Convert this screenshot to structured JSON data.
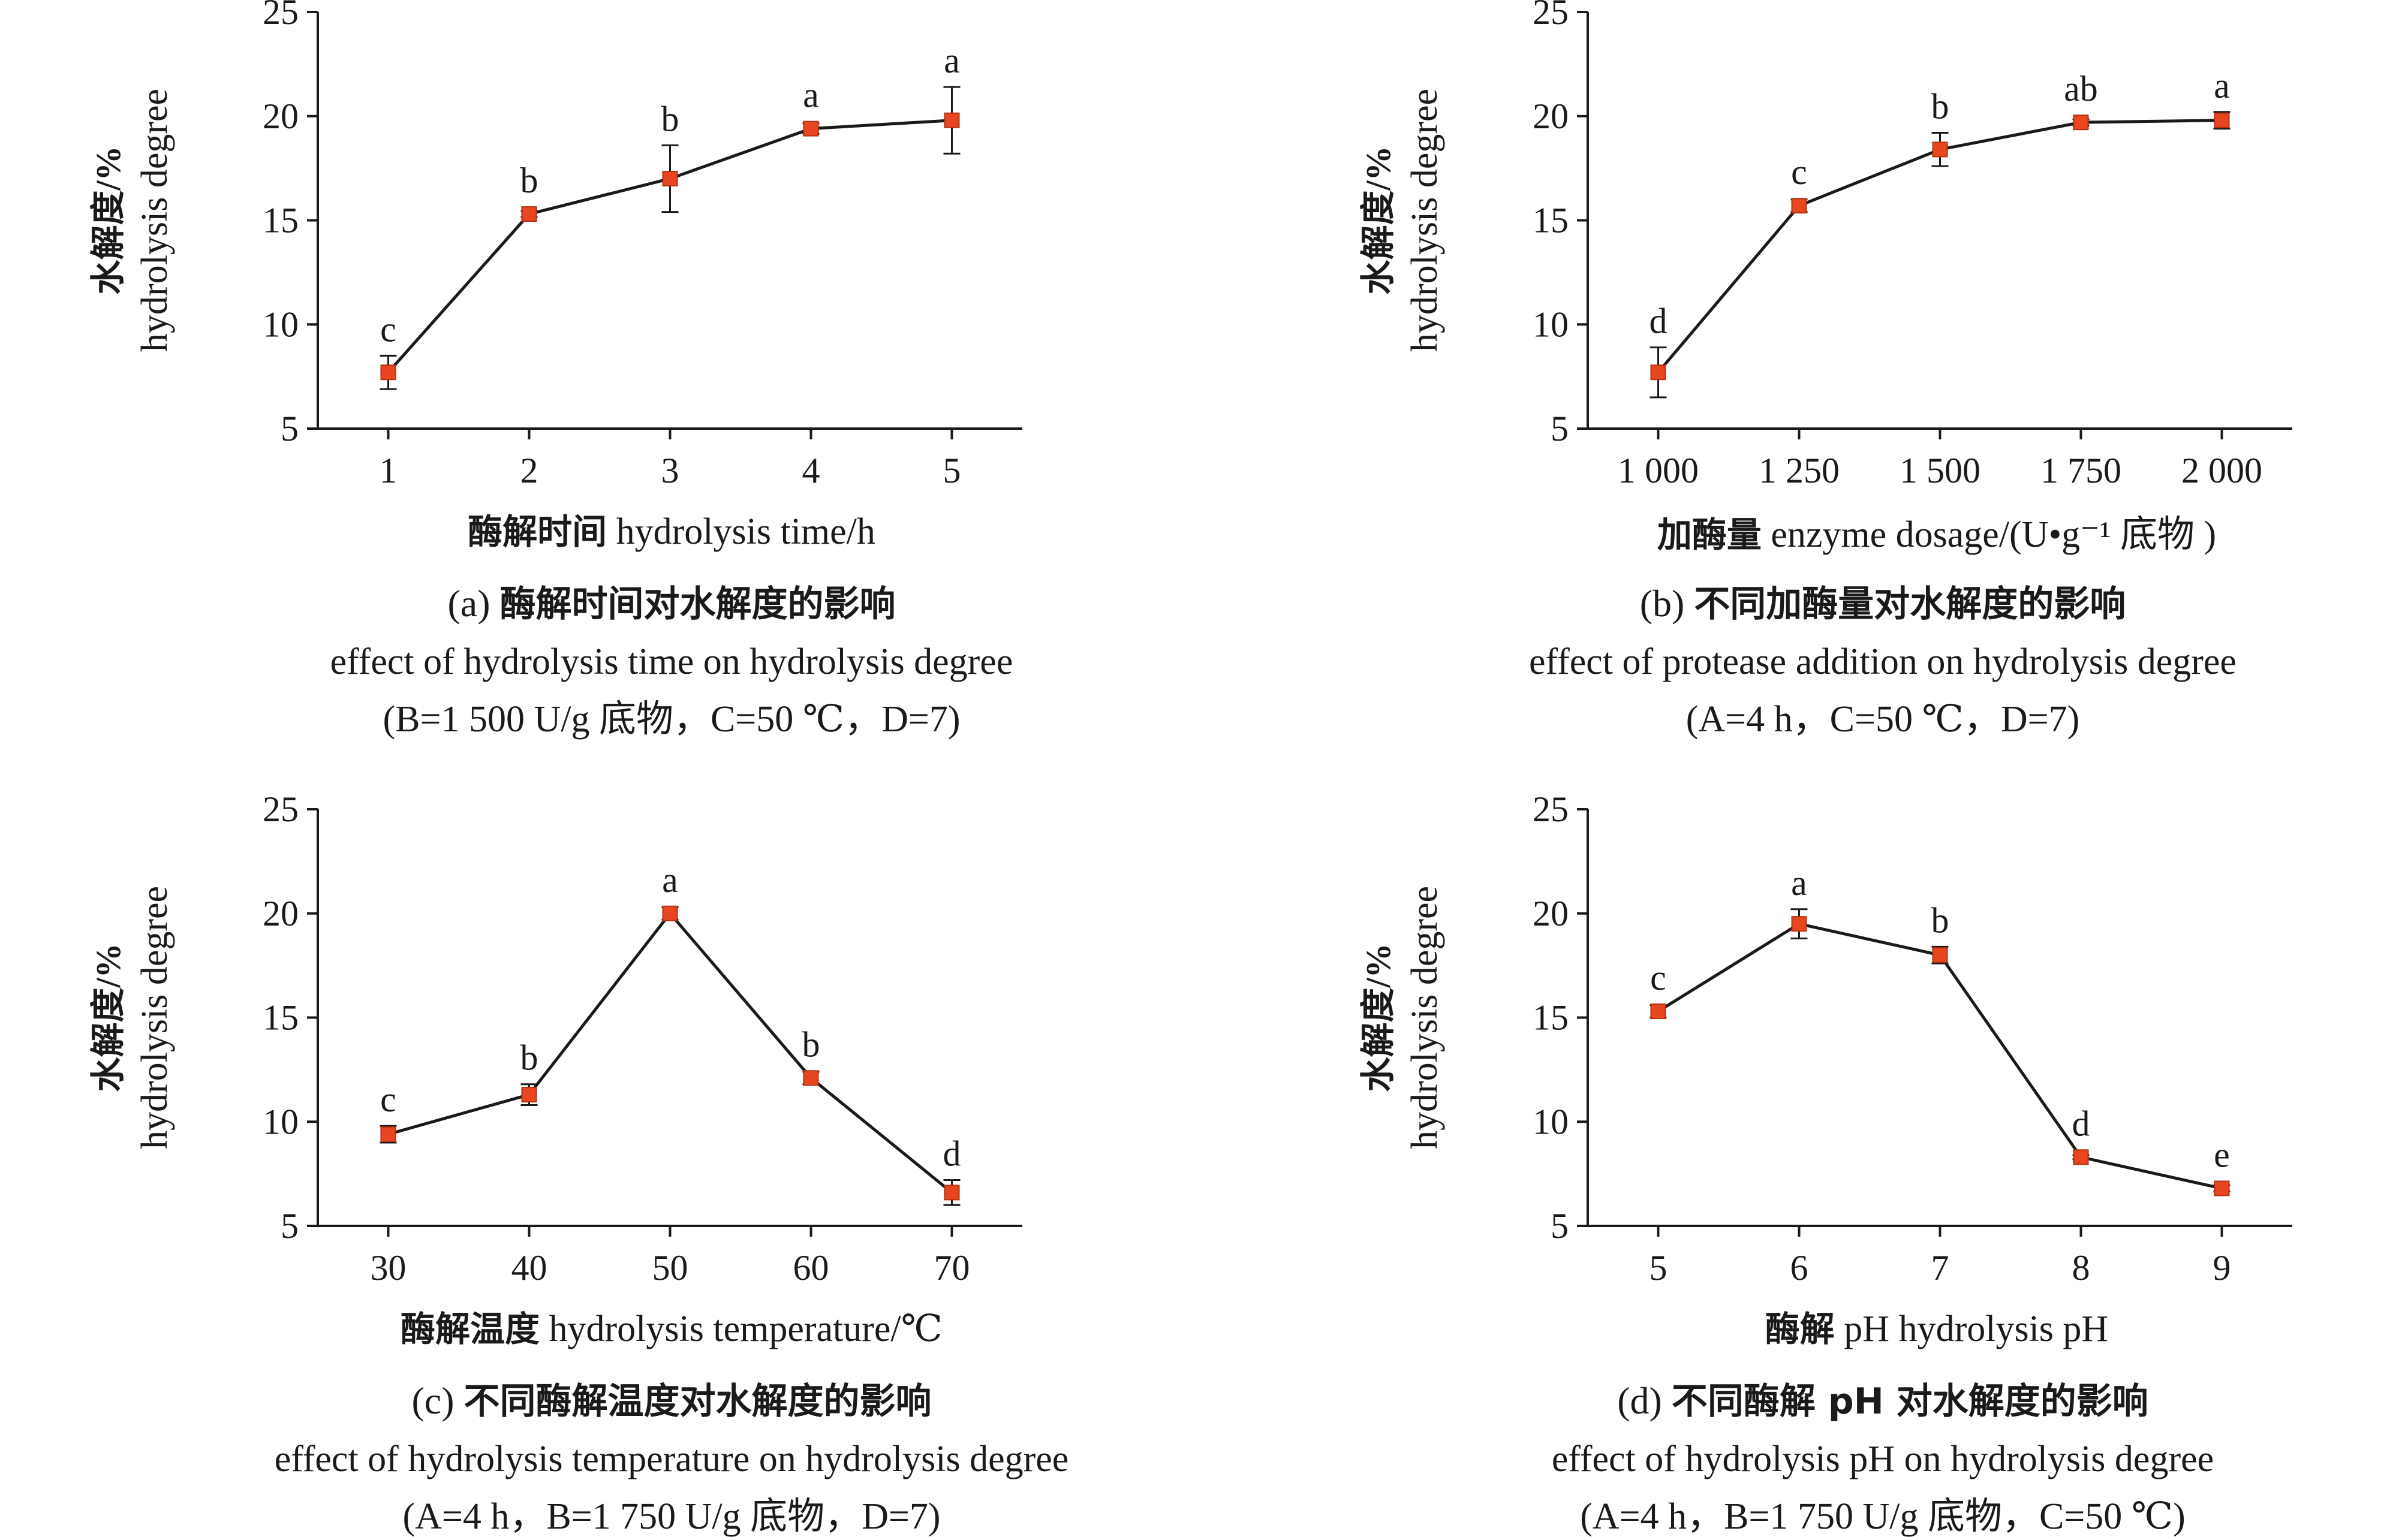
{
  "chart_data": [
    {
      "id": "a",
      "type": "line",
      "y_label_cn": "水解度/%",
      "y_label_en": "hydrolysis degree",
      "x_label_cn": "酶解时间",
      "x_label_en": "hydrolysis time/h",
      "x_ticks": [
        "1",
        "2",
        "3",
        "4",
        "5"
      ],
      "y_ticks": [
        "5",
        "10",
        "15",
        "20",
        "25"
      ],
      "ylim": [
        5,
        25
      ],
      "points": [
        {
          "x": "1",
          "y": 7.7,
          "err": 0.8,
          "letter": "c"
        },
        {
          "x": "2",
          "y": 15.3,
          "err": 0.15,
          "letter": "b"
        },
        {
          "x": "3",
          "y": 17.0,
          "err": 1.6,
          "letter": "b"
        },
        {
          "x": "4",
          "y": 19.4,
          "err": 0.25,
          "letter": "a"
        },
        {
          "x": "5",
          "y": 19.8,
          "err": 1.6,
          "letter": "a"
        }
      ],
      "caption_prefix": "(a)",
      "caption_cn": "酶解时间对水解度的影响",
      "caption_en": "effect of hydrolysis time on hydrolysis degree",
      "caption_cond": "(B=1 500 U/g 底物，C=50 ℃，D=7)"
    },
    {
      "id": "b",
      "type": "line",
      "y_label_cn": "水解度/%",
      "y_label_en": "hydrolysis degree",
      "x_label_cn": "加酶量",
      "x_label_en": "enzyme dosage/(U•g⁻¹ 底物 )",
      "x_ticks": [
        "1 000",
        "1 250",
        "1 500",
        "1 750",
        "2 000"
      ],
      "y_ticks": [
        "5",
        "10",
        "15",
        "20",
        "25"
      ],
      "ylim": [
        5,
        25
      ],
      "points": [
        {
          "x": "1 000",
          "y": 7.7,
          "err": 1.2,
          "letter": "d"
        },
        {
          "x": "1 250",
          "y": 15.7,
          "err": 0.3,
          "letter": "c"
        },
        {
          "x": "1 500",
          "y": 18.4,
          "err": 0.8,
          "letter": "b"
        },
        {
          "x": "1 750",
          "y": 19.7,
          "err": 0.15,
          "letter": "ab"
        },
        {
          "x": "2 000",
          "y": 19.8,
          "err": 0.4,
          "letter": "a"
        }
      ],
      "caption_prefix": "(b)",
      "caption_cn": "不同加酶量对水解度的影响",
      "caption_en": "effect of protease addition on hydrolysis degree",
      "caption_cond": "(A=4 h，C=50 ℃，D=7)"
    },
    {
      "id": "c",
      "type": "line",
      "y_label_cn": "水解度/%",
      "y_label_en": "hydrolysis degree",
      "x_label_cn": "酶解温度",
      "x_label_en": "hydrolysis temperature/℃",
      "x_ticks": [
        "30",
        "40",
        "50",
        "60",
        "70"
      ],
      "y_ticks": [
        "5",
        "10",
        "15",
        "20",
        "25"
      ],
      "ylim": [
        5,
        25
      ],
      "points": [
        {
          "x": "30",
          "y": 9.4,
          "err": 0.4,
          "letter": "c"
        },
        {
          "x": "40",
          "y": 11.3,
          "err": 0.5,
          "letter": "b"
        },
        {
          "x": "50",
          "y": 20.0,
          "err": 0.3,
          "letter": "a"
        },
        {
          "x": "60",
          "y": 12.1,
          "err": 0.3,
          "letter": "b"
        },
        {
          "x": "70",
          "y": 6.6,
          "err": 0.6,
          "letter": "d"
        }
      ],
      "caption_prefix": "(c)",
      "caption_cn": "不同酶解温度对水解度的影响",
      "caption_en": "effect of hydrolysis temperature on hydrolysis degree",
      "caption_cond": "(A=4 h，B=1 750 U/g 底物，D=7)"
    },
    {
      "id": "d",
      "type": "line",
      "y_label_cn": "水解度/%",
      "y_label_en": "hydrolysis degree",
      "x_label_cn": "酶解",
      "x_label_en": "pH  hydrolysis pH",
      "x_ticks": [
        "5",
        "6",
        "7",
        "8",
        "9"
      ],
      "y_ticks": [
        "5",
        "10",
        "15",
        "20",
        "25"
      ],
      "ylim": [
        5,
        25
      ],
      "points": [
        {
          "x": "5",
          "y": 15.3,
          "err": 0.3,
          "letter": "c"
        },
        {
          "x": "6",
          "y": 19.5,
          "err": 0.7,
          "letter": "a"
        },
        {
          "x": "7",
          "y": 18.0,
          "err": 0.4,
          "letter": "b"
        },
        {
          "x": "8",
          "y": 8.3,
          "err": 0.1,
          "letter": "d"
        },
        {
          "x": "9",
          "y": 6.8,
          "err": 0.15,
          "letter": "e"
        }
      ],
      "caption_prefix": "(d)",
      "caption_cn": "不同酶解 pH 对水解度的影响",
      "caption_en": "effect of hydrolysis pH on hydrolysis degree",
      "caption_cond": "(A=4 h，B=1 750 U/g 底物，C=50 ℃)"
    }
  ],
  "colors": {
    "line": "#1a1a1a",
    "marker": "#e8461e",
    "axis": "#1a1a1a"
  }
}
